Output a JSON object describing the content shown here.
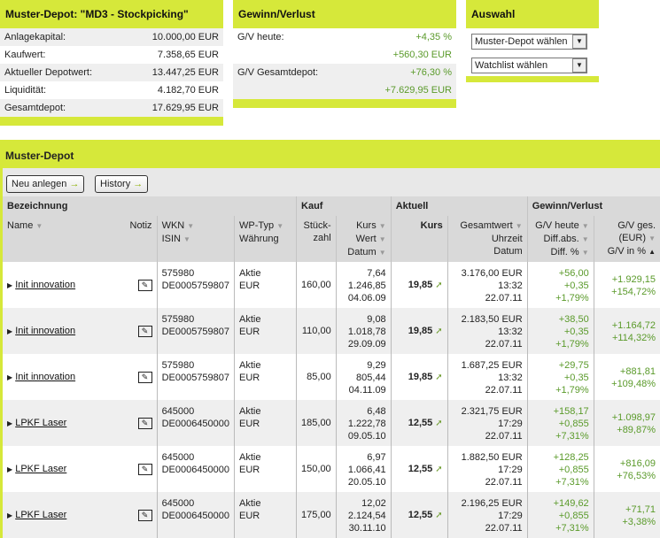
{
  "summary": {
    "title": "Muster-Depot: \"MD3 - Stockpicking\"",
    "rows": [
      {
        "label": "Anlagekapital:",
        "value": "10.000,00 EUR"
      },
      {
        "label": "Kaufwert:",
        "value": "7.358,65 EUR"
      },
      {
        "label": "Aktueller Depotwert:",
        "value": "13.447,25 EUR"
      },
      {
        "label": "Liquidität:",
        "value": "4.182,70 EUR"
      },
      {
        "label": "Gesamtdepot:",
        "value": "17.629,95 EUR"
      }
    ]
  },
  "gv": {
    "title": "Gewinn/Verlust",
    "heute_label": "G/V heute:",
    "heute_pct": "+4,35 %",
    "heute_abs": "+560,30 EUR",
    "ges_label": "G/V Gesamtdepot:",
    "ges_pct": "+76,30 %",
    "ges_abs": "+7.629,95 EUR"
  },
  "auswahl": {
    "title": "Auswahl",
    "select1": "Muster-Depot wählen",
    "select2": "Watchlist wählen"
  },
  "section_title": "Muster-Depot",
  "toolbar": {
    "new": "Neu anlegen",
    "history": "History"
  },
  "header": {
    "g1": "Bezeichnung",
    "g2": "Kauf",
    "g3": "Aktuell",
    "g4": "Gewinn/Verlust",
    "name": "Name",
    "notiz": "Notiz",
    "wkn": "WKN",
    "isin": "ISIN",
    "wptyp": "WP-Typ",
    "waehrung": "Währung",
    "stueck1": "Stück-",
    "stueck2": "zahl",
    "kurs": "Kurs",
    "wert": "Wert",
    "datum": "Datum",
    "akurs": "Kurs",
    "gesamtwert": "Gesamtwert",
    "uhrzeit": "Uhrzeit",
    "adatum": "Datum",
    "gvh": "G/V heute",
    "diffabs": "Diff.abs.",
    "diffpct": "Diff. %",
    "gvges1": "G/V ges.",
    "gvges2": "(EUR)",
    "gvpct": "G/V in %"
  },
  "rows": [
    {
      "name": "Init innovation",
      "wkn": "575980",
      "isin": "DE0005759807",
      "typ": "Aktie",
      "cur": "EUR",
      "stk": "160,00",
      "kurs": "7,64",
      "wert": "1.246,85",
      "datum": "04.06.09",
      "akurs": "19,85",
      "gw": "3.176,00 EUR",
      "zeit": "13:32",
      "adatum": "22.07.11",
      "gvh": "+56,00",
      "dabs": "+0,35",
      "dpct": "+1,79%",
      "gges": "+1.929,15",
      "gpct": "+154,72%"
    },
    {
      "name": "Init innovation",
      "wkn": "575980",
      "isin": "DE0005759807",
      "typ": "Aktie",
      "cur": "EUR",
      "stk": "110,00",
      "kurs": "9,08",
      "wert": "1.018,78",
      "datum": "29.09.09",
      "akurs": "19,85",
      "gw": "2.183,50 EUR",
      "zeit": "13:32",
      "adatum": "22.07.11",
      "gvh": "+38,50",
      "dabs": "+0,35",
      "dpct": "+1,79%",
      "gges": "+1.164,72",
      "gpct": "+114,32%"
    },
    {
      "name": "Init innovation",
      "wkn": "575980",
      "isin": "DE0005759807",
      "typ": "Aktie",
      "cur": "EUR",
      "stk": "85,00",
      "kurs": "9,29",
      "wert": "805,44",
      "datum": "04.11.09",
      "akurs": "19,85",
      "gw": "1.687,25 EUR",
      "zeit": "13:32",
      "adatum": "22.07.11",
      "gvh": "+29,75",
      "dabs": "+0,35",
      "dpct": "+1,79%",
      "gges": "+881,81",
      "gpct": "+109,48%"
    },
    {
      "name": "LPKF Laser",
      "wkn": "645000",
      "isin": "DE0006450000",
      "typ": "Aktie",
      "cur": "EUR",
      "stk": "185,00",
      "kurs": "6,48",
      "wert": "1.222,78",
      "datum": "09.05.10",
      "akurs": "12,55",
      "gw": "2.321,75 EUR",
      "zeit": "17:29",
      "adatum": "22.07.11",
      "gvh": "+158,17",
      "dabs": "+0,855",
      "dpct": "+7,31%",
      "gges": "+1.098,97",
      "gpct": "+89,87%"
    },
    {
      "name": "LPKF Laser",
      "wkn": "645000",
      "isin": "DE0006450000",
      "typ": "Aktie",
      "cur": "EUR",
      "stk": "150,00",
      "kurs": "6,97",
      "wert": "1.066,41",
      "datum": "20.05.10",
      "akurs": "12,55",
      "gw": "1.882,50 EUR",
      "zeit": "17:29",
      "adatum": "22.07.11",
      "gvh": "+128,25",
      "dabs": "+0,855",
      "dpct": "+7,31%",
      "gges": "+816,09",
      "gpct": "+76,53%"
    },
    {
      "name": "LPKF Laser",
      "wkn": "645000",
      "isin": "DE0006450000",
      "typ": "Aktie",
      "cur": "EUR",
      "stk": "175,00",
      "kurs": "12,02",
      "wert": "2.124,54",
      "datum": "30.11.10",
      "akurs": "12,55",
      "gw": "2.196,25 EUR",
      "zeit": "17:29",
      "adatum": "22.07.11",
      "gvh": "+149,62",
      "dabs": "+0,855",
      "dpct": "+7,31%",
      "gges": "+71,71",
      "gpct": "+3,38%"
    }
  ],
  "colors": {
    "accent": "#d6e83a",
    "positive": "#5a9a2a"
  }
}
